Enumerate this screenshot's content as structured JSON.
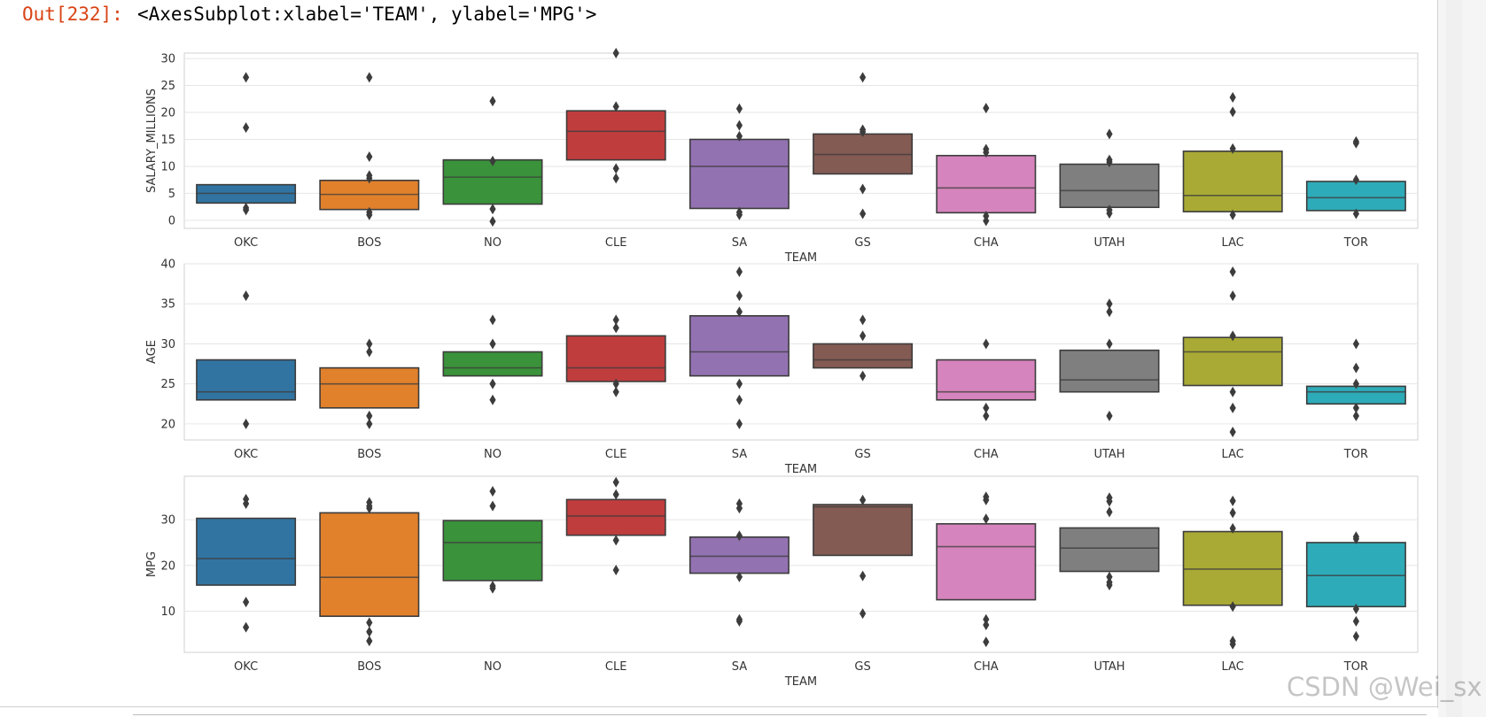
{
  "output": {
    "prompt": "Out[232]:",
    "text": "<AxesSubplot:xlabel='TEAM', ylabel='MPG'>"
  },
  "watermark": "CSDN @Wei_sx",
  "colors": {
    "grid": "#e6e6e6",
    "frame": "#d0d0d0",
    "median": "#3c3c3c",
    "outlier": "#3c3c3c"
  },
  "chart_data": [
    {
      "type": "boxen",
      "xlabel": "TEAM",
      "ylabel": "SALARY_MILLIONS",
      "ylim": [
        -1.5,
        31
      ],
      "yticks": [
        0,
        5,
        10,
        15,
        20,
        25,
        30
      ],
      "categories": [
        "OKC",
        "BOS",
        "NO",
        "CLE",
        "SA",
        "GS",
        "CHA",
        "UTAH",
        "LAC",
        "TOR"
      ],
      "colors": [
        "#3274a1",
        "#e1812c",
        "#3a923a",
        "#c03d3e",
        "#9372b2",
        "#845b53",
        "#d684bd",
        "#7f7f7f",
        "#a9aa35",
        "#2eabb8"
      ],
      "boxes": [
        {
          "low": 3.2,
          "high": 6.6,
          "median": 5.0,
          "outliers": [
            26.5,
            17.2,
            2.3,
            1.9
          ]
        },
        {
          "low": 2.0,
          "high": 7.4,
          "median": 4.8,
          "outliers": [
            26.5,
            11.8,
            8.3,
            7.8,
            1.5,
            1.0
          ]
        },
        {
          "low": 3.0,
          "high": 11.2,
          "median": 8.0,
          "outliers": [
            22.1,
            11.0,
            2.1,
            -0.2
          ]
        },
        {
          "low": 11.2,
          "high": 20.3,
          "median": 16.5,
          "outliers": [
            31.0,
            21.1,
            9.6,
            7.8
          ]
        },
        {
          "low": 2.2,
          "high": 15.0,
          "median": 10.0,
          "outliers": [
            20.7,
            17.6,
            15.6,
            1.5,
            1.0
          ]
        },
        {
          "low": 8.6,
          "high": 16.0,
          "median": 12.2,
          "outliers": [
            26.5,
            16.8,
            16.4,
            5.8,
            1.2
          ]
        },
        {
          "low": 1.4,
          "high": 12.0,
          "median": 6.0,
          "outliers": [
            20.8,
            13.2,
            12.6,
            0.8,
            -0.1
          ]
        },
        {
          "low": 2.4,
          "high": 10.4,
          "median": 5.5,
          "outliers": [
            16.0,
            11.2,
            10.8,
            1.9,
            1.3
          ]
        },
        {
          "low": 1.6,
          "high": 12.8,
          "median": 4.6,
          "outliers": [
            22.8,
            20.1,
            13.3,
            1.0
          ]
        },
        {
          "low": 1.8,
          "high": 7.2,
          "median": 4.2,
          "outliers": [
            14.6,
            14.3,
            7.5,
            1.2
          ]
        }
      ]
    },
    {
      "type": "boxen",
      "xlabel": "TEAM",
      "ylabel": "AGE",
      "ylim": [
        18,
        40
      ],
      "yticks": [
        20,
        25,
        30,
        35,
        40
      ],
      "categories": [
        "OKC",
        "BOS",
        "NO",
        "CLE",
        "SA",
        "GS",
        "CHA",
        "UTAH",
        "LAC",
        "TOR"
      ],
      "colors": [
        "#3274a1",
        "#e1812c",
        "#3a923a",
        "#c03d3e",
        "#9372b2",
        "#845b53",
        "#d684bd",
        "#7f7f7f",
        "#a9aa35",
        "#2eabb8"
      ],
      "boxes": [
        {
          "low": 23,
          "high": 28,
          "median": 24,
          "outliers": [
            36,
            20
          ]
        },
        {
          "low": 22,
          "high": 27,
          "median": 25,
          "outliers": [
            30,
            29,
            21,
            20
          ]
        },
        {
          "low": 26,
          "high": 29,
          "median": 27,
          "outliers": [
            33,
            30,
            25,
            23
          ]
        },
        {
          "low": 25.3,
          "high": 31,
          "median": 27,
          "outliers": [
            33,
            32,
            25,
            24
          ]
        },
        {
          "low": 26,
          "high": 33.5,
          "median": 29,
          "outliers": [
            39,
            36,
            34,
            25,
            23,
            20
          ]
        },
        {
          "low": 27,
          "high": 30,
          "median": 28,
          "outliers": [
            33,
            31,
            26
          ]
        },
        {
          "low": 23,
          "high": 28,
          "median": 24,
          "outliers": [
            30,
            22,
            21
          ]
        },
        {
          "low": 24,
          "high": 29.2,
          "median": 25.5,
          "outliers": [
            35,
            34,
            30,
            21
          ]
        },
        {
          "low": 24.8,
          "high": 30.8,
          "median": 29,
          "outliers": [
            39,
            36,
            31,
            24,
            22,
            19
          ]
        },
        {
          "low": 22.5,
          "high": 24.7,
          "median": 24,
          "outliers": [
            30,
            27,
            25,
            22,
            21
          ]
        }
      ]
    },
    {
      "type": "boxen",
      "xlabel": "TEAM",
      "ylabel": "MPG",
      "ylim": [
        1,
        39.5
      ],
      "yticks": [
        10,
        20,
        30
      ],
      "categories": [
        "OKC",
        "BOS",
        "NO",
        "CLE",
        "SA",
        "GS",
        "CHA",
        "UTAH",
        "LAC",
        "TOR"
      ],
      "colors": [
        "#3274a1",
        "#e1812c",
        "#3a923a",
        "#c03d3e",
        "#9372b2",
        "#845b53",
        "#d684bd",
        "#7f7f7f",
        "#a9aa35",
        "#2eabb8"
      ],
      "boxes": [
        {
          "low": 15.7,
          "high": 30.3,
          "median": 21.5,
          "outliers": [
            34.5,
            33.5,
            12.0,
            6.5
          ]
        },
        {
          "low": 8.9,
          "high": 31.5,
          "median": 17.4,
          "outliers": [
            33.8,
            33.0,
            32.5,
            7.5,
            5.5,
            3.5
          ]
        },
        {
          "low": 16.7,
          "high": 29.8,
          "median": 25.0,
          "outliers": [
            36.2,
            33.0,
            15.5,
            15.0
          ]
        },
        {
          "low": 26.6,
          "high": 34.4,
          "median": 30.8,
          "outliers": [
            38.2,
            35.5,
            25.5,
            19.0
          ]
        },
        {
          "low": 18.3,
          "high": 26.2,
          "median": 22.0,
          "outliers": [
            33.5,
            32.5,
            26.5,
            17.5,
            8.2,
            7.8
          ]
        },
        {
          "low": 22.2,
          "high": 33.3,
          "median": 32.8,
          "outliers": [
            34.3,
            17.7,
            9.5
          ]
        },
        {
          "low": 12.5,
          "high": 29.1,
          "median": 24.1,
          "outliers": [
            35.0,
            34.3,
            30.2,
            8.2,
            7.0,
            3.3
          ]
        },
        {
          "low": 18.7,
          "high": 28.2,
          "median": 23.8,
          "outliers": [
            34.8,
            34.0,
            31.7,
            17.5,
            16.3,
            15.7
          ]
        },
        {
          "low": 11.3,
          "high": 27.4,
          "median": 19.2,
          "outliers": [
            34.1,
            31.5,
            28.1,
            11.0,
            3.5,
            2.8
          ]
        },
        {
          "low": 11.0,
          "high": 25.0,
          "median": 17.8,
          "outliers": [
            26.3,
            25.8,
            10.5,
            7.8,
            4.5
          ]
        }
      ]
    }
  ]
}
